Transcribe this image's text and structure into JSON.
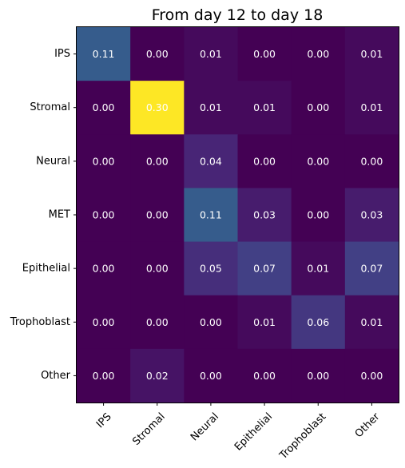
{
  "chart_data": {
    "type": "heatmap",
    "title": "From day 12 to day 18",
    "xlabel": "",
    "ylabel": "",
    "colormap": "viridis",
    "value_range": [
      0.0,
      0.3
    ],
    "row_labels": [
      "IPS",
      "Stromal",
      "Neural",
      "MET",
      "Epithelial",
      "Trophoblast",
      "Other"
    ],
    "col_labels": [
      "IPS",
      "Stromal",
      "Neural",
      "Epithelial",
      "Trophoblast",
      "Other"
    ],
    "values": [
      [
        0.11,
        0.0,
        0.01,
        0.0,
        0.0,
        0.01
      ],
      [
        0.0,
        0.3,
        0.01,
        0.01,
        0.0,
        0.01
      ],
      [
        0.0,
        0.0,
        0.04,
        0.0,
        0.0,
        0.0
      ],
      [
        0.0,
        0.0,
        0.11,
        0.03,
        0.0,
        0.03
      ],
      [
        0.0,
        0.0,
        0.05,
        0.07,
        0.01,
        0.07
      ],
      [
        0.0,
        0.0,
        0.0,
        0.01,
        0.06,
        0.01
      ],
      [
        0.0,
        0.02,
        0.0,
        0.0,
        0.0,
        0.0
      ]
    ],
    "value_labels": [
      [
        "0.11",
        "0.00",
        "0.01",
        "0.00",
        "0.00",
        "0.01"
      ],
      [
        "0.00",
        "0.30",
        "0.01",
        "0.01",
        "0.00",
        "0.01"
      ],
      [
        "0.00",
        "0.00",
        "0.04",
        "0.00",
        "0.00",
        "0.00"
      ],
      [
        "0.00",
        "0.00",
        "0.11",
        "0.03",
        "0.00",
        "0.03"
      ],
      [
        "0.00",
        "0.00",
        "0.05",
        "0.07",
        "0.01",
        "0.07"
      ],
      [
        "0.00",
        "0.00",
        "0.00",
        "0.01",
        "0.06",
        "0.01"
      ],
      [
        "0.00",
        "0.02",
        "0.00",
        "0.00",
        "0.00",
        "0.00"
      ]
    ],
    "annotation_color": "#ffffff",
    "grid": false,
    "legend": "none",
    "colorbar": false
  }
}
